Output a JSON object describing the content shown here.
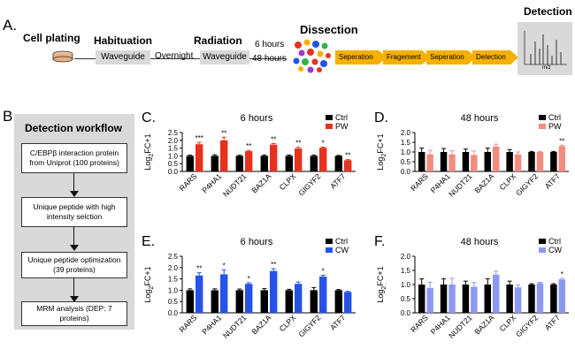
{
  "panel_a": {
    "letter": "A.",
    "cell_plating": "Cell plating",
    "habituation": "Habituation",
    "radiation": "Radiation",
    "dissection": "Dissection",
    "detection": "Detection",
    "waveguide_1": "Waveguide",
    "overnight": "Overnight",
    "waveguide_2": "Waveguide",
    "time_6": "6 hours",
    "time_48": "48 hours",
    "steps": [
      "Seperation",
      "Fragement",
      "Seperation",
      "Detection"
    ],
    "mz": "m/z"
  },
  "panel_b": {
    "letter": "B.",
    "title": "Detection workflow",
    "boxes": [
      "C/EBPβ interaction protein from Uniprot (100 proteins)",
      "Unique peptide with high intensity selction",
      "Unique peptide optimization (39 proteins)",
      "MRM analysis (DEP: 7 proteins)"
    ]
  },
  "colors": {
    "ctrl": "#000000",
    "pw": "#e8311f",
    "pw_light": "#f28c80",
    "cw": "#2553e8",
    "cw_light": "#8c98f2",
    "box_grey": "#d9d9d9",
    "arrow_orange": "#f5b000"
  },
  "chart_data": [
    {
      "panel": "C.",
      "type": "bar",
      "title": "6 hours",
      "ylabel": "Log2FC+1",
      "ylim": [
        0,
        2.5
      ],
      "yticks": [
        "0.0",
        "0.5",
        "1.0",
        "1.5",
        "2.0",
        "2.5"
      ],
      "categories": [
        "RARS",
        "P4HA1",
        "NUDT21",
        "BAZ1A",
        "CLPX",
        "GIGYF2",
        "ATF7"
      ],
      "series": [
        {
          "name": "Ctrl",
          "color": "#000000",
          "values": [
            1.0,
            1.0,
            1.0,
            1.0,
            1.0,
            1.0,
            1.0
          ],
          "errors": [
            0.05,
            0.07,
            0.04,
            0.05,
            0.05,
            0.05,
            0.03
          ]
        },
        {
          "name": "PW",
          "color": "#e8311f",
          "values": [
            1.75,
            2.0,
            1.3,
            1.72,
            1.48,
            1.52,
            0.72
          ],
          "errors": [
            0.12,
            0.2,
            0.05,
            0.07,
            0.08,
            0.04,
            0.04
          ]
        }
      ],
      "significance": [
        "***",
        "**",
        "**",
        "**",
        "**",
        "*",
        "**"
      ]
    },
    {
      "panel": "D.",
      "type": "bar",
      "title": "48 hours",
      "ylabel": "Log2FC+1",
      "ylim": [
        0,
        2.0
      ],
      "yticks": [
        "0.0",
        "0.5",
        "1.0",
        "1.5",
        "2.0"
      ],
      "categories": [
        "RARS",
        "P4HA1",
        "NUDT21",
        "BAZ1A",
        "CLPX",
        "GIGYF2",
        "ATF7"
      ],
      "series": [
        {
          "name": "Ctrl",
          "color": "#000000",
          "values": [
            1.0,
            1.0,
            1.0,
            1.0,
            1.0,
            1.0,
            1.0
          ],
          "errors": [
            0.2,
            0.18,
            0.15,
            0.2,
            0.12,
            0.03,
            0.03
          ]
        },
        {
          "name": "PW",
          "color": "#f28c80",
          "values": [
            0.88,
            0.88,
            0.85,
            1.28,
            0.88,
            1.0,
            1.3
          ],
          "errors": [
            0.2,
            0.18,
            0.2,
            0.12,
            0.12,
            0.03,
            0.05
          ]
        }
      ],
      "significance": [
        "",
        "",
        "",
        "",
        "",
        "",
        "**"
      ]
    },
    {
      "panel": "E.",
      "type": "bar",
      "title": "6 hours",
      "ylabel": "Log2FC+1",
      "ylim": [
        0,
        2.5
      ],
      "yticks": [
        "0.0",
        "0.5",
        "1.0",
        "1.5",
        "2.0",
        "2.5"
      ],
      "categories": [
        "RARS",
        "P4HA1",
        "NUDT21",
        "BAZ1A",
        "CLPX",
        "GIGYF2",
        "ATF7"
      ],
      "series": [
        {
          "name": "Ctrl",
          "color": "#000000",
          "values": [
            1.0,
            1.0,
            1.0,
            1.0,
            1.0,
            1.0,
            1.0
          ],
          "errors": [
            0.06,
            0.06,
            0.05,
            0.07,
            0.04,
            0.12,
            0.03
          ]
        },
        {
          "name": "CW",
          "color": "#2553e8",
          "values": [
            1.65,
            1.7,
            1.28,
            1.85,
            1.28,
            1.6,
            0.92
          ],
          "errors": [
            0.12,
            0.2,
            0.05,
            0.1,
            0.08,
            0.06,
            0.03
          ]
        }
      ],
      "significance": [
        "**",
        "*",
        "*",
        "**",
        "",
        "*",
        ""
      ]
    },
    {
      "panel": "F.",
      "type": "bar",
      "title": "48 hours",
      "ylabel": "Log2FC+1",
      "ylim": [
        0,
        2.0
      ],
      "yticks": [
        "0.0",
        "0.5",
        "1.0",
        "1.5",
        "2.0"
      ],
      "categories": [
        "RARS",
        "P4HA1",
        "NUDT21",
        "BAZ1A",
        "CLPX",
        "GIGYF2",
        "ATF7"
      ],
      "series": [
        {
          "name": "Ctrl",
          "color": "#000000",
          "values": [
            1.0,
            1.0,
            1.0,
            1.0,
            1.0,
            1.0,
            1.0
          ],
          "errors": [
            0.2,
            0.2,
            0.12,
            0.2,
            0.12,
            0.03,
            0.03
          ]
        },
        {
          "name": "CW",
          "color": "#8c98f2",
          "values": [
            0.88,
            1.0,
            0.92,
            1.35,
            0.9,
            1.05,
            1.18
          ],
          "errors": [
            0.2,
            0.22,
            0.15,
            0.12,
            0.08,
            0.03,
            0.04
          ]
        }
      ],
      "significance": [
        "",
        "",
        "",
        "",
        "",
        "",
        "*"
      ]
    }
  ]
}
